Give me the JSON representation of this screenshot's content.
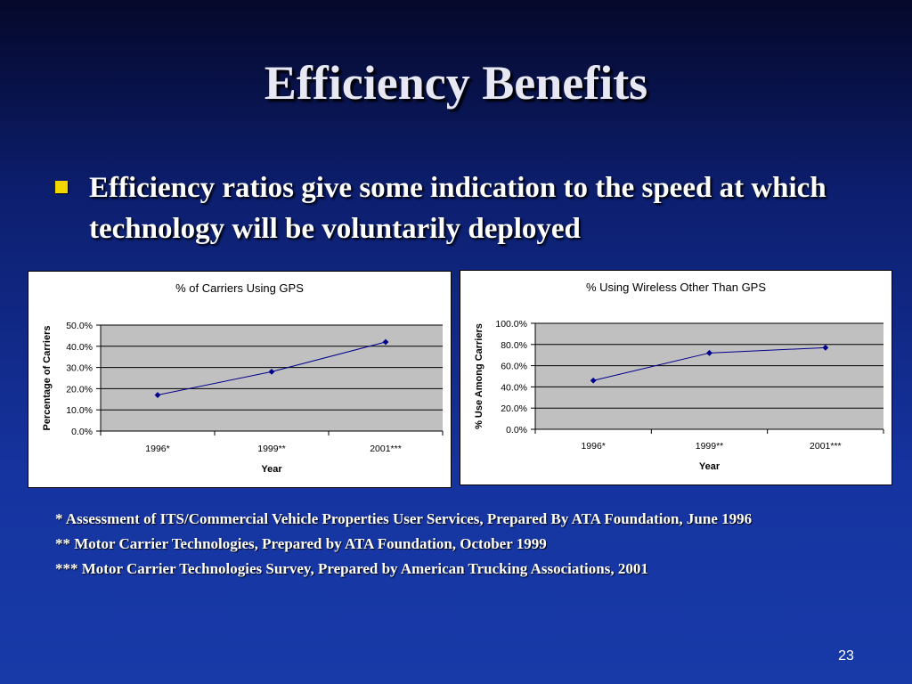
{
  "slide": {
    "title": "Efficiency Benefits",
    "bullet": "Efficiency ratios give some indication to the speed at which technology will be voluntarily deployed",
    "footnotes": [
      "* Assessment of ITS/Commercial Vehicle Properties User Services, Prepared By ATA Foundation, June 1996",
      "** Motor Carrier Technologies, Prepared by ATA Foundation, October 1999",
      "*** Motor Carrier Technologies Survey, Prepared by American Trucking Associations, 2001"
    ],
    "page_number": "23"
  },
  "colors": {
    "series_line": "#00008b",
    "plot_area": "#c0c0c0",
    "bullet_marker": "#f2d600"
  },
  "chart_data": [
    {
      "type": "line",
      "title": "% of Carriers Using GPS",
      "xlabel": "Year",
      "ylabel": "Percentage of Carriers",
      "categories": [
        "1996*",
        "1999**",
        "2001***"
      ],
      "series": [
        {
          "values": [
            17.0,
            28.0,
            42.0
          ]
        }
      ],
      "ylim": [
        0,
        50
      ],
      "yticks": [
        0,
        10,
        20,
        30,
        40,
        50
      ],
      "ytick_labels": [
        "0.0%",
        "10.0%",
        "20.0%",
        "30.0%",
        "40.0%",
        "50.0%"
      ],
      "grid": true,
      "legend": "none"
    },
    {
      "type": "line",
      "title": "% Using Wireless Other Than GPS",
      "xlabel": "Year",
      "ylabel": "% Use Among Carriers",
      "categories": [
        "1996*",
        "1999**",
        "2001***"
      ],
      "series": [
        {
          "values": [
            46.0,
            72.0,
            77.0
          ]
        }
      ],
      "ylim": [
        0,
        100
      ],
      "yticks": [
        0,
        20,
        40,
        60,
        80,
        100
      ],
      "ytick_labels": [
        "0.0%",
        "20.0%",
        "40.0%",
        "60.0%",
        "80.0%",
        "100.0%"
      ],
      "grid": true,
      "legend": "none"
    }
  ]
}
